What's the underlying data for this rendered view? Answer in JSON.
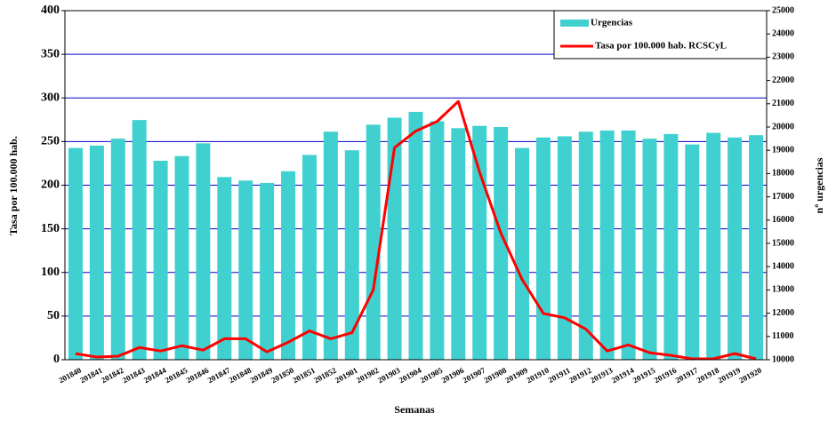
{
  "chart_data": {
    "type": "bar_line",
    "x_label": "Semanas",
    "y_label": "Tasa por 100.000 hab.",
    "y2_label": "nº urgencias",
    "categories": [
      "201840",
      "201841",
      "201842",
      "201843",
      "201844",
      "201845",
      "201846",
      "201847",
      "201848",
      "201849",
      "201850",
      "201851",
      "201852",
      "201901",
      "201902",
      "201903",
      "201904",
      "201905",
      "201906",
      "201907",
      "201908",
      "201909",
      "201910",
      "201911",
      "201912",
      "201913",
      "201914",
      "201915",
      "201916",
      "201917",
      "201918",
      "201919",
      "201920"
    ],
    "series": [
      {
        "name": "Urgencias",
        "type": "bar",
        "axis": "y2",
        "color": "#40d0d0",
        "values": [
          19100,
          19200,
          19500,
          20300,
          18550,
          18750,
          19300,
          17850,
          17700,
          17600,
          18100,
          18800,
          19800,
          19000,
          20100,
          20400,
          20650,
          20250,
          19950,
          20050,
          20000,
          19100,
          19550,
          19600,
          19800,
          19850,
          19850,
          19500,
          19700,
          19250,
          19750,
          19550,
          19650
        ]
      },
      {
        "name": "Tasa por 100.000 hab. RCSCyL",
        "type": "line",
        "axis": "y",
        "color": "#ff0000",
        "values": [
          7,
          3,
          4,
          14,
          10,
          16,
          11,
          24,
          24,
          9,
          20,
          33,
          24,
          31,
          80,
          243,
          262,
          273,
          296,
          215,
          145,
          92,
          53,
          48,
          35,
          10,
          17,
          8,
          5,
          1,
          1,
          7,
          1
        ]
      }
    ],
    "ylim": [
      0,
      400
    ],
    "yticks": [
      0,
      50,
      100,
      150,
      200,
      250,
      300,
      350,
      400
    ],
    "y2lim": [
      10000,
      25000
    ],
    "y2ticks": [
      10000,
      11000,
      12000,
      13000,
      14000,
      15000,
      16000,
      17000,
      18000,
      19000,
      20000,
      21000,
      22000,
      23000,
      24000,
      25000
    ],
    "grid": true,
    "grid_color": "#0000cc",
    "legend": "top-right"
  }
}
